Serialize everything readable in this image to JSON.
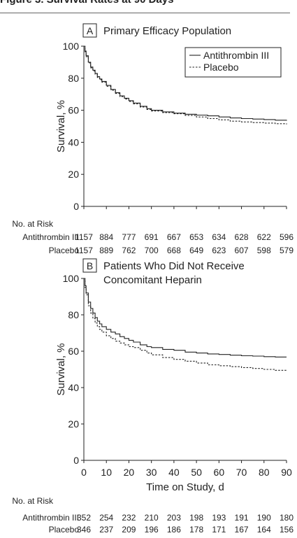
{
  "header": {
    "text": "Figure 3. Survival Rates at 90 Days"
  },
  "colors": {
    "line": "#222222"
  },
  "chart_data": [
    {
      "type": "line",
      "panel_letter": "A",
      "title": "Primary Efficacy Population",
      "title_lines": [
        "Primary Efficacy Population"
      ],
      "xlabel": "",
      "ylabel": "Survival, %",
      "xlim": [
        0,
        90
      ],
      "ylim": [
        0,
        100
      ],
      "xticks": [
        0,
        10,
        20,
        30,
        40,
        50,
        60,
        70,
        80,
        90
      ],
      "yticks": [
        0,
        20,
        40,
        60,
        80,
        100
      ],
      "x_tick_labels_visible": false,
      "grid": false,
      "legend": "top-right",
      "series": [
        {
          "name": "Antithrombin III",
          "style": "solid",
          "x": [
            0,
            0.5,
            1,
            2,
            3,
            4,
            5,
            6,
            7,
            8,
            10,
            12,
            14,
            16,
            18,
            20,
            22,
            25,
            28,
            30,
            35,
            40,
            45,
            50,
            55,
            60,
            65,
            70,
            75,
            80,
            85,
            90
          ],
          "y": [
            100,
            97,
            94,
            90,
            87,
            85,
            83,
            81,
            79.5,
            78,
            75.5,
            73,
            71,
            69,
            67.5,
            66,
            64.5,
            62.5,
            61,
            60,
            59,
            58.2,
            57.5,
            57,
            56.5,
            55.8,
            55.2,
            54.8,
            54.5,
            54.2,
            53.8,
            53.5
          ]
        },
        {
          "name": "Placebo",
          "style": "dashed",
          "x": [
            0,
            0.5,
            1,
            2,
            3,
            4,
            5,
            6,
            7,
            8,
            10,
            12,
            14,
            16,
            18,
            20,
            22,
            25,
            28,
            30,
            35,
            40,
            45,
            50,
            55,
            60,
            65,
            70,
            75,
            80,
            85,
            90
          ],
          "y": [
            100,
            96.5,
            93.5,
            89.5,
            86.5,
            84.5,
            82.5,
            80.5,
            79,
            77.5,
            75,
            72.5,
            70.5,
            68.5,
            67,
            65.5,
            64,
            62,
            60.5,
            59.5,
            58.5,
            57.8,
            56.8,
            55.8,
            54.8,
            54,
            53.2,
            52.7,
            52.3,
            52,
            51.6,
            51.2
          ]
        }
      ],
      "risk_table": {
        "heading": "No. at Risk",
        "rows": [
          {
            "label": "Antithrombin III",
            "values": [
              "1157",
              "884",
              "777",
              "691",
              "667",
              "653",
              "634",
              "628",
              "622",
              "596"
            ]
          },
          {
            "label": "Placebo",
            "values": [
              "1157",
              "889",
              "762",
              "700",
              "668",
              "649",
              "623",
              "607",
              "598",
              "579"
            ]
          }
        ]
      }
    },
    {
      "type": "line",
      "panel_letter": "B",
      "title": "Patients Who Did Not Receive Concomitant Heparin",
      "title_lines": [
        "Patients Who Did Not Receive",
        "Concomitant Heparin"
      ],
      "xlabel": "Time on Study, d",
      "ylabel": "Survival, %",
      "xlim": [
        0,
        90
      ],
      "ylim": [
        0,
        100
      ],
      "xticks": [
        0,
        10,
        20,
        30,
        40,
        50,
        60,
        70,
        80,
        90
      ],
      "yticks": [
        0,
        20,
        40,
        60,
        80,
        100
      ],
      "x_tick_labels_visible": true,
      "grid": false,
      "legend": "none",
      "series": [
        {
          "name": "Antithrombin III",
          "style": "solid",
          "x": [
            0,
            0.5,
            1,
            2,
            3,
            4,
            5,
            6,
            7,
            8,
            10,
            12,
            14,
            16,
            18,
            20,
            22,
            25,
            28,
            30,
            35,
            40,
            45,
            50,
            55,
            60,
            65,
            70,
            75,
            80,
            85,
            90
          ],
          "y": [
            100,
            96,
            92,
            87,
            83.5,
            81,
            78.5,
            76.5,
            75,
            73.5,
            72,
            70.5,
            69.5,
            68,
            67,
            66,
            65,
            63.5,
            62.5,
            62,
            61,
            60.5,
            59.5,
            59,
            58.5,
            58.2,
            57.8,
            57.5,
            57.3,
            57,
            56.8,
            56.8
          ]
        },
        {
          "name": "Placebo",
          "style": "dashed",
          "x": [
            0,
            0.5,
            1,
            2,
            3,
            4,
            5,
            6,
            7,
            8,
            10,
            12,
            14,
            16,
            18,
            20,
            22,
            25,
            28,
            30,
            35,
            40,
            45,
            50,
            55,
            60,
            65,
            70,
            75,
            80,
            85,
            90
          ],
          "y": [
            100,
            95,
            91,
            85,
            81,
            78,
            75.5,
            73.5,
            72,
            70.5,
            68.5,
            67,
            65.5,
            64.5,
            63.5,
            62.5,
            62,
            60.5,
            59,
            58,
            56.5,
            55.5,
            54.5,
            53.5,
            52.5,
            52,
            51.5,
            51,
            50.5,
            50,
            49.5,
            49.5
          ]
        }
      ],
      "risk_table": {
        "heading": "No. at Risk",
        "rows": [
          {
            "label": "Antithrombin III",
            "values": [
              "352",
              "254",
              "232",
              "210",
              "203",
              "198",
              "193",
              "191",
              "190",
              "180"
            ]
          },
          {
            "label": "Placebo",
            "values": [
              "346",
              "237",
              "209",
              "196",
              "186",
              "178",
              "171",
              "167",
              "164",
              "156"
            ]
          }
        ]
      }
    }
  ]
}
